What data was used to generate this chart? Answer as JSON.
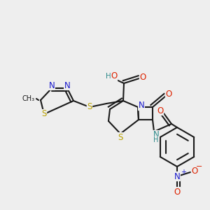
{
  "bg_color": "#eeeeee",
  "bond_color": "#1a1a1a",
  "bond_lw": 1.5,
  "dbl_off": 0.012,
  "figsize": [
    3.0,
    3.0
  ],
  "dpi": 100,
  "colors": {
    "S": "#b8a000",
    "N": "#1a1acc",
    "O": "#dd2200",
    "NH": "#2a8888",
    "C": "#1a1a1a",
    "H": "#2a8888"
  }
}
